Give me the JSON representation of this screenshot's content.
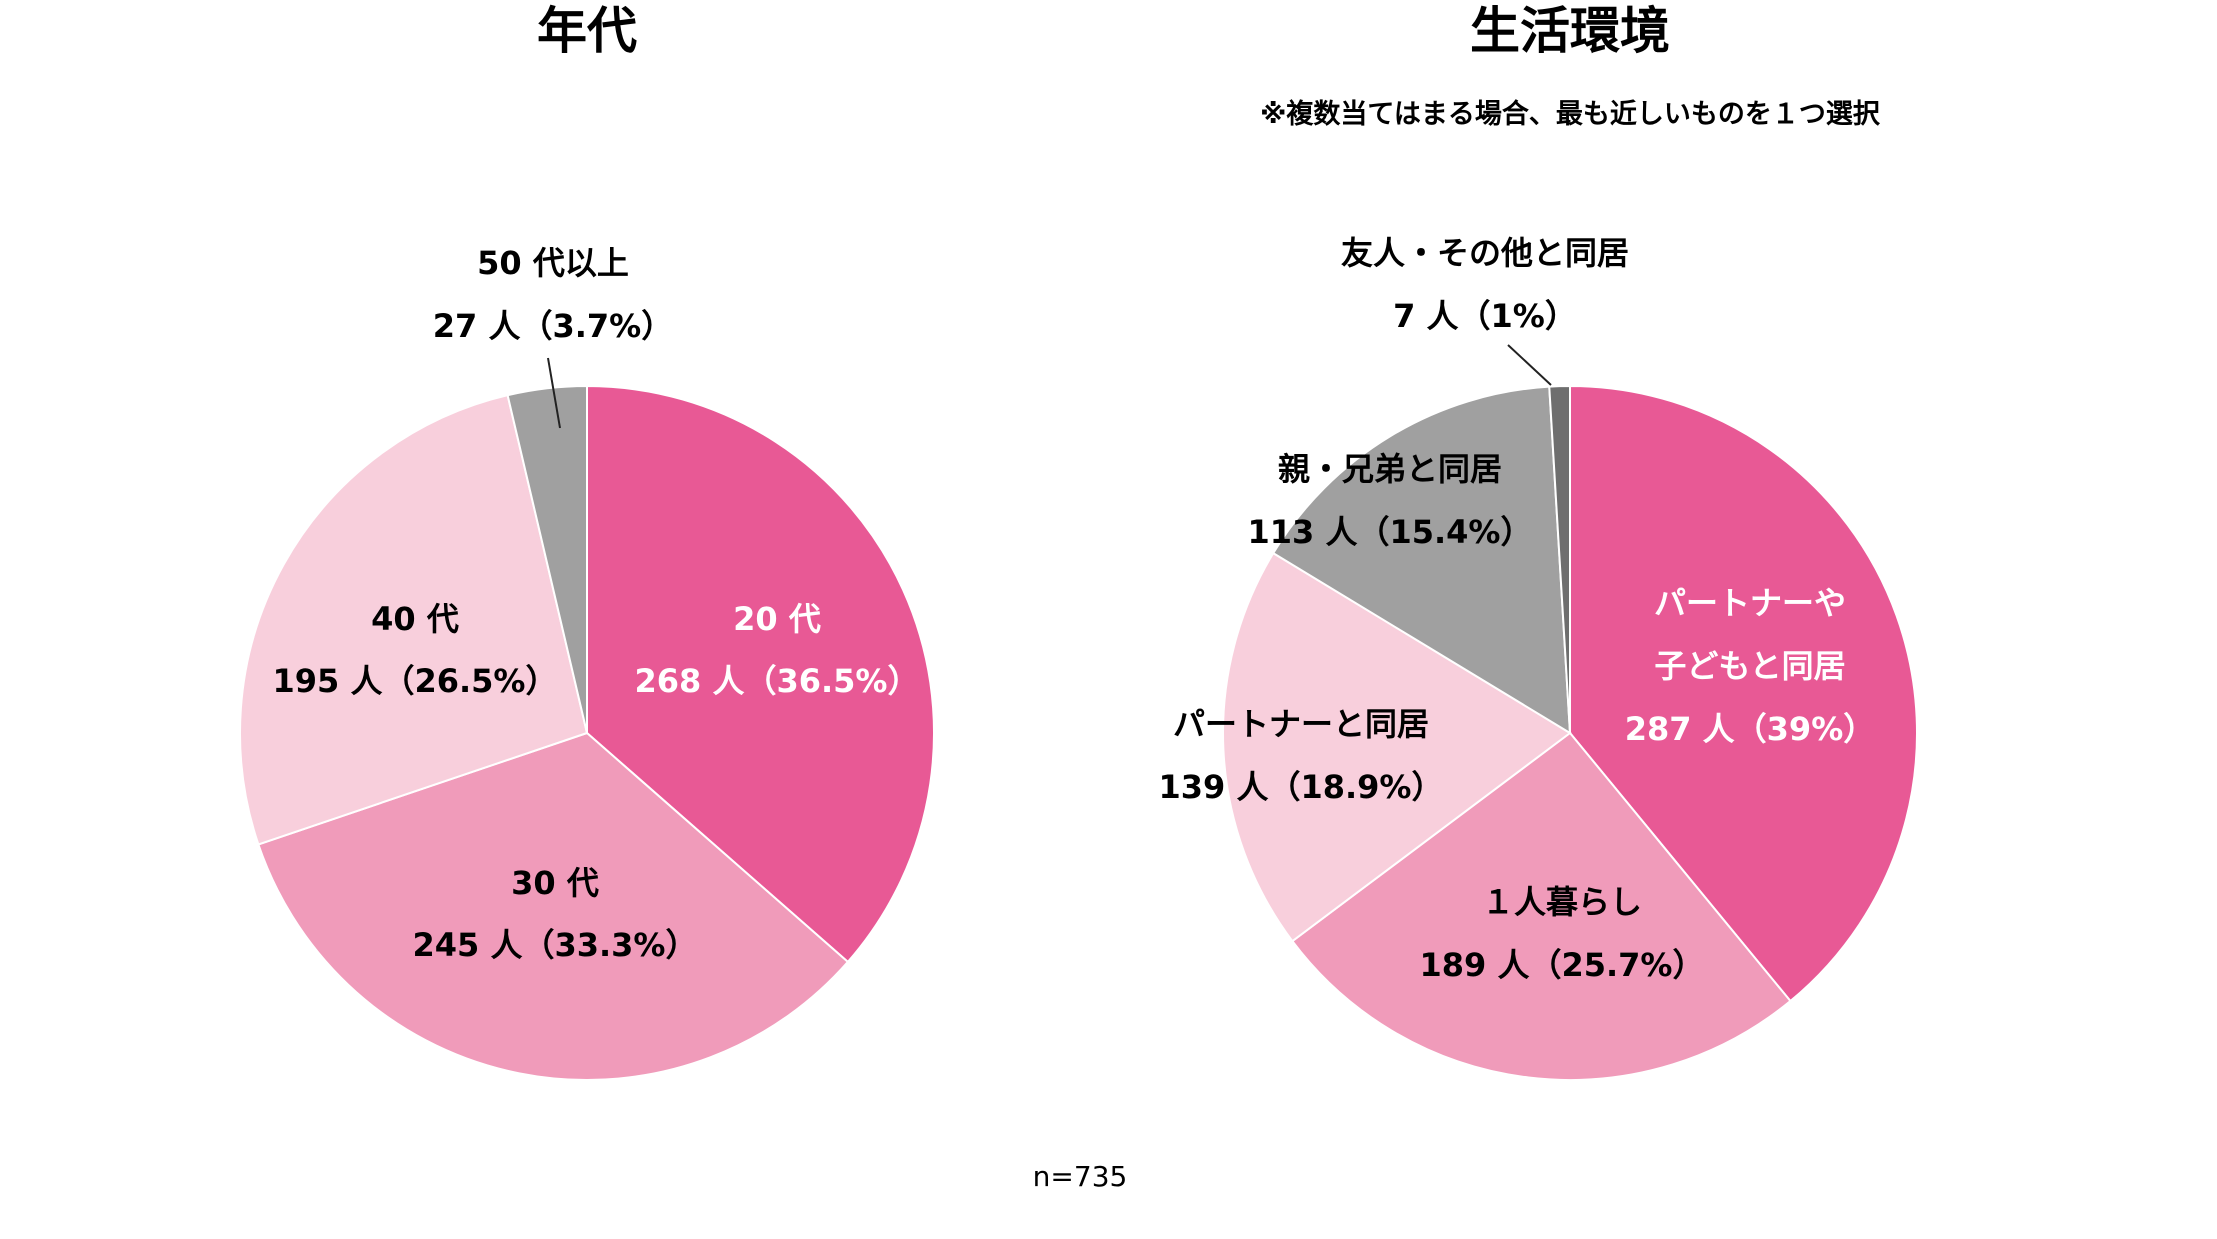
{
  "chart_data": [
    {
      "type": "pie",
      "title": "年代",
      "note": "",
      "start_angle_deg": 0,
      "slices": [
        {
          "name": "20代",
          "line1": "20 代",
          "line2": "268 人（36.5%）",
          "count": 268,
          "percent": 36.5,
          "color": "#e85995",
          "label_color": "#ffffff",
          "label_pos": "inside-right"
        },
        {
          "name": "30代",
          "line1": "30 代",
          "line2": "245 人（33.3%）",
          "count": 245,
          "percent": 33.3,
          "color": "#f09bba",
          "label_color": "#111111",
          "label_pos": "inside-bottom"
        },
        {
          "name": "40代",
          "line1": "40 代",
          "line2": "195 人（26.5%）",
          "count": 195,
          "percent": 26.5,
          "color": "#f8cfdc",
          "label_color": "#111111",
          "label_pos": "inside-left"
        },
        {
          "name": "50代以上",
          "line1": "50 代以上",
          "line2": "27 人（3.7%）",
          "count": 27,
          "percent": 3.7,
          "color": "#a0a0a0",
          "label_color": "#111111",
          "label_pos": "outside-top"
        }
      ]
    },
    {
      "type": "pie",
      "title": "生活環境",
      "note": "※複数当てはまる場合、最も近しいものを１つ選択",
      "start_angle_deg": 0,
      "slices": [
        {
          "name": "パートナーや子どもと同居",
          "line1": "パートナーや",
          "line2": "子どもと同居",
          "line3": "287 人（39%）",
          "count": 287,
          "percent": 39,
          "color": "#e85995",
          "label_color": "#ffffff",
          "label_pos": "inside-right"
        },
        {
          "name": "1人暮らし",
          "line1": "１人暮らし",
          "line2": "189 人（25.7%）",
          "count": 189,
          "percent": 25.7,
          "color": "#f09bba",
          "label_color": "#111111",
          "label_pos": "inside-bottom"
        },
        {
          "name": "パートナーと同居",
          "line1": "パートナーと同居",
          "line2": "139 人（18.9%）",
          "count": 139,
          "percent": 18.9,
          "color": "#f8cfdc",
          "label_color": "#111111",
          "label_pos": "inside-left"
        },
        {
          "name": "親・兄弟と同居",
          "line1": "親・兄弟と同居",
          "line2": "113 人（15.4%）",
          "count": 113,
          "percent": 15.4,
          "color": "#a0a0a0",
          "label_color": "#111111",
          "label_pos": "inside-top-left"
        },
        {
          "name": "友人・その他と同居",
          "line1": "友人・その他と同居",
          "line2": "7 人（1%）",
          "count": 7,
          "percent": 1,
          "color": "#6e6e6e",
          "label_color": "#111111",
          "label_pos": "outside-top"
        }
      ]
    }
  ],
  "footer": {
    "sample_size": "n=735"
  }
}
